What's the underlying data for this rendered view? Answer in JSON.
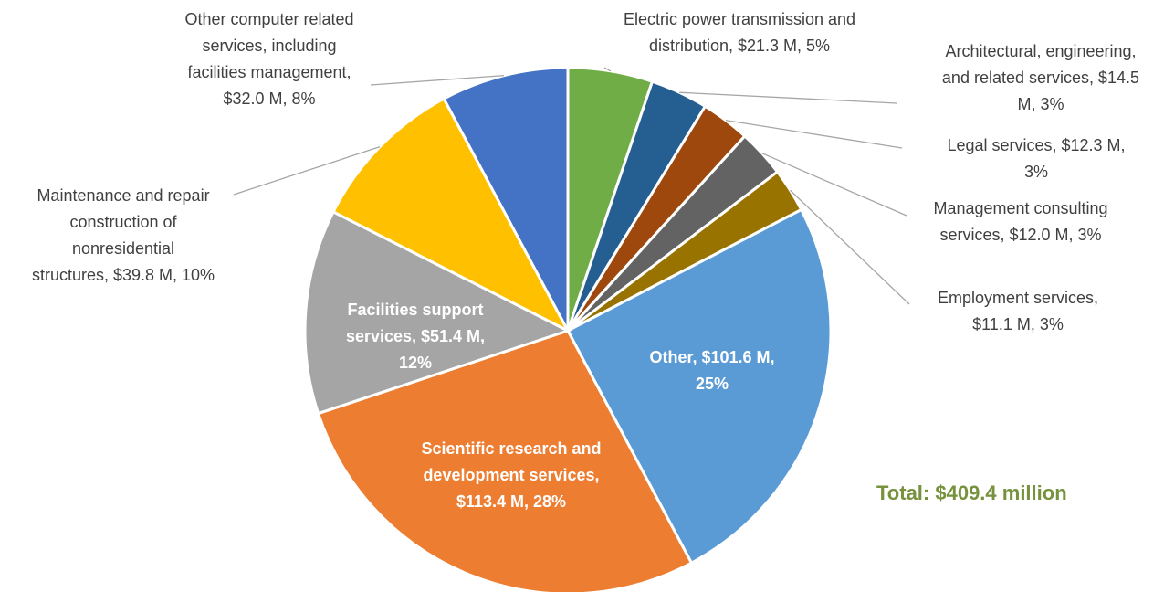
{
  "chart_data": {
    "type": "pie",
    "values": [
      21.3,
      14.5,
      12.3,
      12.0,
      11.1,
      101.6,
      113.4,
      51.4,
      39.8,
      32.0
    ],
    "value_labels": [
      "Electric power transmission and distribution, $21.3 M, 5%",
      "Architectural, engineering, and related services, $14.5 M, 3%",
      "Legal services, $12.3 M, 3%",
      "Management consulting services, $12.0 M, 3%",
      "Employment services, $11.1 M, 3%",
      "Other, $101.6 M, 25%",
      "Scientific research and development services, $113.4 M, 28%",
      "Facilities support services, $51.4 M, 12%",
      "Maintenance and repair construction of nonresidential structures, $39.8 M, 10%",
      "Other computer related services, including facilities management, $32.0 M, 8%"
    ],
    "colors": [
      "#70ad47",
      "#255e91",
      "#9e480e",
      "#636363",
      "#997300",
      "#5b9bd5",
      "#ed7d31",
      "#a5a5a5",
      "#ffc000",
      "#4472c4"
    ],
    "annotation": "Total: $409.4 million"
  }
}
